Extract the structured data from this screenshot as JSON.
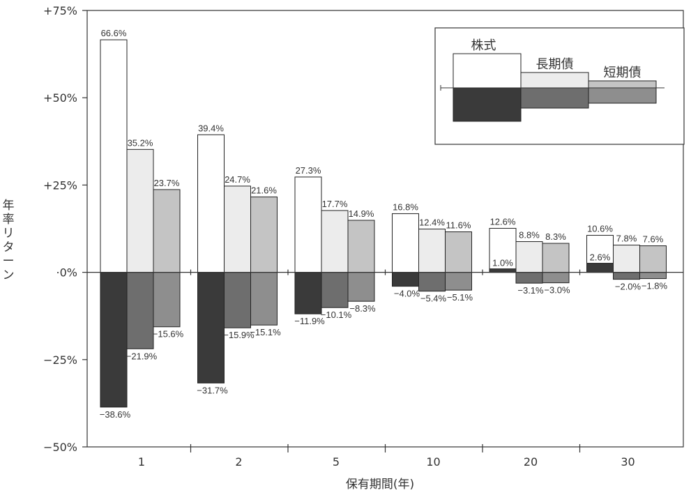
{
  "chart_data": {
    "type": "bar",
    "xlabel": "保有期間(年)",
    "ylabel": "年率リターン",
    "categories": [
      "1",
      "2",
      "5",
      "10",
      "20",
      "30"
    ],
    "y_ticks": [
      "+75%",
      "+50%",
      "+25%",
      "·0%",
      "−25%",
      "−50%"
    ],
    "ylim": [
      -50,
      75
    ],
    "legend_position": "top-right",
    "series": [
      {
        "name": "株式",
        "max": [
          66.6,
          39.4,
          27.3,
          16.8,
          12.6,
          10.6
        ],
        "min": [
          -38.6,
          -31.7,
          -11.9,
          -4.0,
          1.0,
          2.6
        ],
        "max_labels": [
          "66.6%",
          "39.4%",
          "27.3%",
          "16.8%",
          "12.6%",
          "10.6%"
        ],
        "min_labels": [
          "−38.6%",
          "−31.7%",
          "−11.9%",
          "−4.0%",
          "1.0%",
          "2.6%"
        ],
        "fill_positive": "#ffffff",
        "fill_negative": "#3a3a3a"
      },
      {
        "name": "長期債",
        "max": [
          35.2,
          24.7,
          17.7,
          12.4,
          8.8,
          7.8
        ],
        "min": [
          -21.9,
          -15.9,
          -10.1,
          -5.4,
          -3.1,
          -2.0
        ],
        "max_labels": [
          "35.2%",
          "24.7%",
          "17.7%",
          "12.4%",
          "8.8%",
          "7.8%"
        ],
        "min_labels": [
          "−21.9%",
          "−15.9%",
          "−10.1%",
          "−5.4%",
          "−3.1%",
          "−2.0%"
        ],
        "fill_positive": "#ececec",
        "fill_negative": "#6e6e6e"
      },
      {
        "name": "短期債",
        "max": [
          23.7,
          21.6,
          14.9,
          11.6,
          8.3,
          7.6
        ],
        "min": [
          -15.6,
          -15.1,
          -8.3,
          -5.1,
          -3.0,
          -1.8
        ],
        "max_labels": [
          "23.7%",
          "21.6%",
          "14.9%",
          "11.6%",
          "8.3%",
          "7.6%"
        ],
        "min_labels": [
          "−15.6%",
          "−15.1%",
          "−8.3%",
          "−5.1%",
          "−3.0%",
          "−1.8%"
        ],
        "fill_positive": "#c4c4c4",
        "fill_negative": "#8e8e8e"
      }
    ]
  },
  "colors": {
    "axis": "#333333",
    "outline": "#222222"
  }
}
